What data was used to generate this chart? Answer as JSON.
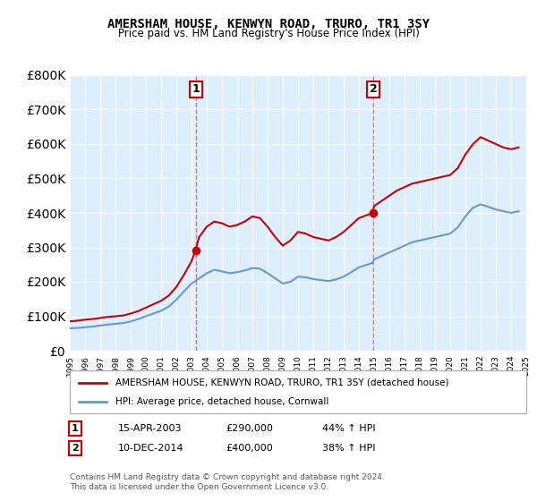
{
  "title": "AMERSHAM HOUSE, KENWYN ROAD, TRURO, TR1 3SY",
  "subtitle": "Price paid vs. HM Land Registry's House Price Index (HPI)",
  "legend_line1": "AMERSHAM HOUSE, KENWYN ROAD, TRURO, TR1 3SY (detached house)",
  "legend_line2": "HPI: Average price, detached house, Cornwall",
  "annotation1_label": "1",
  "annotation1_date": "15-APR-2003",
  "annotation1_price": "£290,000",
  "annotation1_hpi": "44% ↑ HPI",
  "annotation2_label": "2",
  "annotation2_date": "10-DEC-2014",
  "annotation2_price": "£400,000",
  "annotation2_hpi": "38% ↑ HPI",
  "footer": "Contains HM Land Registry data © Crown copyright and database right 2024.\nThis data is licensed under the Open Government Licence v3.0.",
  "red_color": "#cc0000",
  "blue_color": "#6699cc",
  "vline_color": "#ff6666",
  "background_color": "#ffffff",
  "plot_bg_color": "#ddeeff",
  "ylim": [
    0,
    800000
  ],
  "yticks": [
    0,
    100000,
    200000,
    300000,
    400000,
    500000,
    600000,
    700000,
    800000
  ],
  "red_hpi_data": {
    "years": [
      1995.0,
      1995.5,
      1996.0,
      1996.5,
      1997.0,
      1997.5,
      1998.0,
      1998.5,
      1999.0,
      1999.5,
      2000.0,
      2000.5,
      2001.0,
      2001.5,
      2002.0,
      2002.5,
      2003.0,
      2003.25,
      2003.5,
      2004.0,
      2004.5,
      2005.0,
      2005.5,
      2006.0,
      2006.5,
      2007.0,
      2007.5,
      2008.0,
      2008.5,
      2009.0,
      2009.5,
      2010.0,
      2010.5,
      2011.0,
      2011.5,
      2012.0,
      2012.5,
      2013.0,
      2013.5,
      2014.0,
      2014.9,
      2015.0,
      2015.5,
      2016.0,
      2016.5,
      2017.0,
      2017.5,
      2018.0,
      2018.5,
      2019.0,
      2019.5,
      2020.0,
      2020.5,
      2021.0,
      2021.5,
      2022.0,
      2022.5,
      2023.0,
      2023.5,
      2024.0,
      2024.5
    ],
    "values": [
      85000,
      87000,
      90000,
      92000,
      95000,
      98000,
      100000,
      102000,
      108000,
      115000,
      125000,
      135000,
      145000,
      160000,
      185000,
      220000,
      260000,
      290000,
      330000,
      360000,
      375000,
      370000,
      360000,
      365000,
      375000,
      390000,
      385000,
      360000,
      330000,
      305000,
      320000,
      345000,
      340000,
      330000,
      325000,
      320000,
      330000,
      345000,
      365000,
      385000,
      400000,
      420000,
      435000,
      450000,
      465000,
      475000,
      485000,
      490000,
      495000,
      500000,
      505000,
      510000,
      530000,
      570000,
      600000,
      620000,
      610000,
      600000,
      590000,
      585000,
      590000
    ]
  },
  "blue_hpi_data": {
    "years": [
      1995.0,
      1995.5,
      1996.0,
      1996.5,
      1997.0,
      1997.5,
      1998.0,
      1998.5,
      1999.0,
      1999.5,
      2000.0,
      2000.5,
      2001.0,
      2001.5,
      2002.0,
      2002.5,
      2003.0,
      2003.5,
      2004.0,
      2004.5,
      2005.0,
      2005.5,
      2006.0,
      2006.5,
      2007.0,
      2007.5,
      2008.0,
      2008.5,
      2009.0,
      2009.5,
      2010.0,
      2010.5,
      2011.0,
      2011.5,
      2012.0,
      2012.5,
      2013.0,
      2013.5,
      2014.0,
      2014.9,
      2015.0,
      2015.5,
      2016.0,
      2016.5,
      2017.0,
      2017.5,
      2018.0,
      2018.5,
      2019.0,
      2019.5,
      2020.0,
      2020.5,
      2021.0,
      2021.5,
      2022.0,
      2022.5,
      2023.0,
      2023.5,
      2024.0,
      2024.5
    ],
    "values": [
      65000,
      66000,
      68000,
      70000,
      73000,
      76000,
      78000,
      80000,
      85000,
      92000,
      100000,
      108000,
      116000,
      128000,
      148000,
      172000,
      195000,
      210000,
      225000,
      235000,
      230000,
      225000,
      228000,
      233000,
      240000,
      238000,
      225000,
      210000,
      195000,
      200000,
      215000,
      213000,
      208000,
      205000,
      202000,
      207000,
      215000,
      228000,
      242000,
      255000,
      265000,
      275000,
      285000,
      295000,
      305000,
      315000,
      320000,
      325000,
      330000,
      335000,
      340000,
      358000,
      390000,
      415000,
      425000,
      418000,
      410000,
      405000,
      400000,
      405000
    ]
  },
  "sale1_x": 2003.29,
  "sale1_y": 290000,
  "sale2_x": 2014.95,
  "sale2_y": 400000,
  "xmin": 1995,
  "xmax": 2025
}
